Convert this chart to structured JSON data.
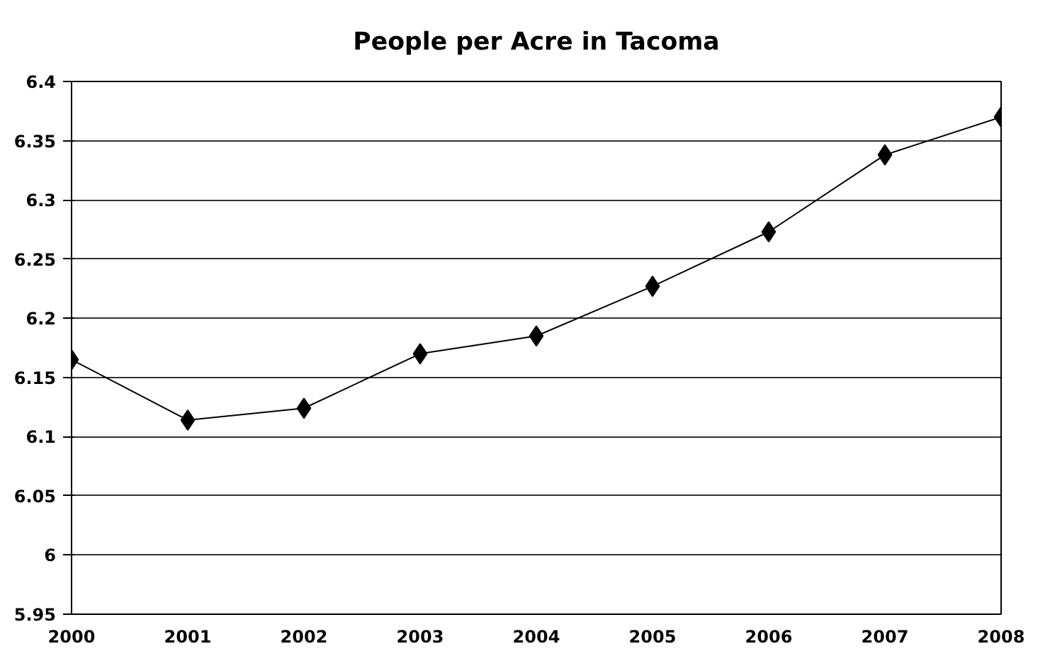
{
  "chart_data": {
    "type": "line",
    "title": "People per Acre in Tacoma",
    "x": [
      2000,
      2001,
      2002,
      2003,
      2004,
      2005,
      2006,
      2007,
      2008
    ],
    "series": [
      {
        "color": "#000000",
        "values": [
          6.165,
          6.114,
          6.124,
          6.17,
          6.185,
          6.227,
          6.273,
          6.338,
          6.37
        ]
      }
    ],
    "xlim": [
      2000,
      2008
    ],
    "xticks": [
      2000,
      2001,
      2002,
      2003,
      2004,
      2005,
      2006,
      2007,
      2008
    ],
    "ylim": [
      5.95,
      6.4
    ],
    "yticks": [
      5.95,
      6,
      6.05,
      6.1,
      6.15,
      6.2,
      6.25,
      6.3,
      6.35,
      6.4
    ],
    "grid": "y",
    "marker": "diamond",
    "line_style": "solid"
  }
}
